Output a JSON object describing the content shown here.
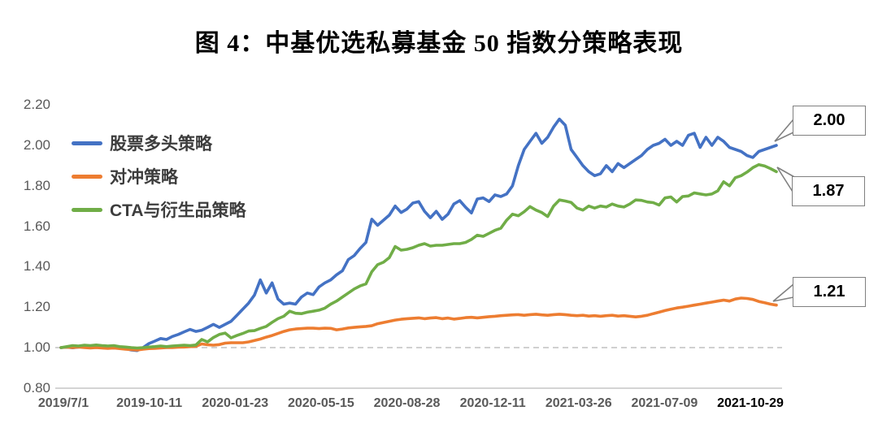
{
  "title": "图 4：中基优选私募基金 50 指数分策略表现",
  "chart_data": {
    "type": "line",
    "title": "图 4：中基优选私募基金 50 指数分策略表现",
    "xlabel": "",
    "ylabel": "",
    "ylim": [
      0.8,
      2.2
    ],
    "y_tick_step": 0.2,
    "baseline_value": 1.0,
    "baseline_style": "dashed gray horizontal line at 1.00",
    "grid": "only dashed line at 1.00; solid bottom axis at 0.80",
    "legend_position": "top-left inside plot",
    "y_tick_labels": [
      "0.80",
      "1.00",
      "1.20",
      "1.40",
      "1.60",
      "1.80",
      "2.00",
      "2.20"
    ],
    "y_tick_values": [
      0.8,
      1.0,
      1.2,
      1.4,
      1.6,
      1.8,
      2.0,
      2.2
    ],
    "x_tick_labels": [
      "2019/7/1",
      "2019-10-11",
      "2020-01-23",
      "2020-05-15",
      "2020-08-28",
      "2020-12-11",
      "2021-03-26",
      "2021-07-09",
      "2021-10-29"
    ],
    "series": [
      {
        "name": "股票多头策略",
        "color": "#4472C4",
        "end_label": "2.00",
        "values": [
          1.0,
          1.002,
          0.999,
          1.003,
          1.005,
          1.0,
          1.002,
          1.004,
          1.0,
          0.998,
          1.0,
          0.995,
          0.988,
          0.985,
          1.0,
          1.02,
          1.032,
          1.045,
          1.04,
          1.055,
          1.065,
          1.078,
          1.09,
          1.08,
          1.086,
          1.1,
          1.115,
          1.1,
          1.115,
          1.13,
          1.16,
          1.19,
          1.22,
          1.26,
          1.335,
          1.27,
          1.32,
          1.24,
          1.215,
          1.22,
          1.215,
          1.25,
          1.27,
          1.262,
          1.3,
          1.32,
          1.335,
          1.36,
          1.38,
          1.435,
          1.455,
          1.49,
          1.52,
          1.635,
          1.605,
          1.63,
          1.655,
          1.7,
          1.668,
          1.685,
          1.715,
          1.722,
          1.674,
          1.642,
          1.674,
          1.634,
          1.66,
          1.71,
          1.727,
          1.694,
          1.666,
          1.735,
          1.74,
          1.722,
          1.755,
          1.747,
          1.76,
          1.8,
          1.9,
          1.98,
          2.02,
          2.06,
          2.01,
          2.04,
          2.09,
          2.13,
          2.1,
          1.98,
          1.94,
          1.9,
          1.87,
          1.85,
          1.86,
          1.9,
          1.87,
          1.91,
          1.89,
          1.91,
          1.93,
          1.95,
          1.98,
          2.0,
          2.01,
          2.03,
          2.0,
          2.02,
          2.0,
          2.05,
          2.06,
          1.99,
          2.04,
          2.0,
          2.04,
          2.02,
          1.99,
          1.98,
          1.97,
          1.95,
          1.94,
          1.97,
          1.98,
          1.99,
          2.0
        ]
      },
      {
        "name": "对冲策略",
        "color": "#ED7D31",
        "end_label": "1.21",
        "values": [
          1.0,
          1.002,
          1.0,
          1.003,
          1.0,
          0.998,
          1.0,
          0.998,
          0.996,
          0.998,
          0.995,
          0.992,
          0.99,
          0.988,
          0.992,
          0.995,
          0.996,
          0.998,
          1.0,
          1.0,
          1.002,
          1.003,
          1.005,
          1.006,
          1.018,
          1.014,
          1.012,
          1.015,
          1.022,
          1.024,
          1.024,
          1.024,
          1.028,
          1.035,
          1.042,
          1.052,
          1.06,
          1.07,
          1.08,
          1.088,
          1.092,
          1.094,
          1.096,
          1.096,
          1.094,
          1.096,
          1.095,
          1.088,
          1.092,
          1.097,
          1.1,
          1.103,
          1.105,
          1.108,
          1.118,
          1.124,
          1.13,
          1.136,
          1.14,
          1.143,
          1.145,
          1.147,
          1.143,
          1.146,
          1.148,
          1.143,
          1.146,
          1.141,
          1.144,
          1.148,
          1.15,
          1.147,
          1.15,
          1.153,
          1.155,
          1.158,
          1.16,
          1.162,
          1.163,
          1.16,
          1.163,
          1.165,
          1.162,
          1.16,
          1.163,
          1.165,
          1.163,
          1.16,
          1.158,
          1.16,
          1.156,
          1.158,
          1.155,
          1.158,
          1.16,
          1.156,
          1.158,
          1.155,
          1.152,
          1.155,
          1.16,
          1.168,
          1.175,
          1.183,
          1.19,
          1.196,
          1.2,
          1.205,
          1.21,
          1.215,
          1.22,
          1.225,
          1.23,
          1.235,
          1.23,
          1.24,
          1.245,
          1.243,
          1.238,
          1.228,
          1.222,
          1.215,
          1.21
        ]
      },
      {
        "name": "CTA与衍生品策略",
        "color": "#70AD47",
        "end_label": "1.87",
        "values": [
          1.0,
          1.005,
          1.01,
          1.008,
          1.012,
          1.01,
          1.013,
          1.01,
          1.008,
          1.01,
          1.005,
          1.003,
          1.0,
          0.998,
          1.0,
          1.003,
          1.005,
          1.008,
          1.005,
          1.008,
          1.01,
          1.012,
          1.01,
          1.013,
          1.04,
          1.028,
          1.05,
          1.065,
          1.072,
          1.048,
          1.06,
          1.07,
          1.082,
          1.084,
          1.095,
          1.105,
          1.125,
          1.143,
          1.155,
          1.18,
          1.17,
          1.168,
          1.175,
          1.18,
          1.185,
          1.195,
          1.215,
          1.23,
          1.25,
          1.27,
          1.29,
          1.305,
          1.315,
          1.375,
          1.41,
          1.422,
          1.445,
          1.5,
          1.482,
          1.486,
          1.494,
          1.506,
          1.514,
          1.502,
          1.506,
          1.506,
          1.51,
          1.514,
          1.514,
          1.52,
          1.535,
          1.556,
          1.55,
          1.565,
          1.58,
          1.59,
          1.63,
          1.66,
          1.652,
          1.672,
          1.697,
          1.68,
          1.668,
          1.648,
          1.7,
          1.73,
          1.725,
          1.718,
          1.69,
          1.68,
          1.7,
          1.69,
          1.7,
          1.695,
          1.71,
          1.7,
          1.695,
          1.71,
          1.73,
          1.728,
          1.72,
          1.717,
          1.705,
          1.74,
          1.745,
          1.72,
          1.747,
          1.75,
          1.765,
          1.76,
          1.755,
          1.76,
          1.775,
          1.82,
          1.8,
          1.84,
          1.85,
          1.868,
          1.89,
          1.905,
          1.898,
          1.885,
          1.87
        ]
      }
    ]
  }
}
